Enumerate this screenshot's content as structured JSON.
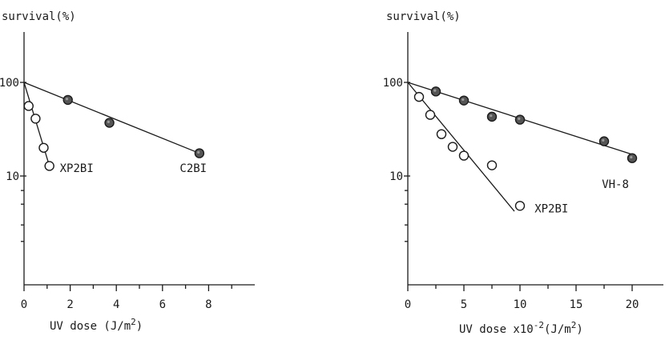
{
  "chart_data": [
    {
      "type": "scatter",
      "title": "",
      "ylabel": "survival(%)",
      "xlabel": "UV dose (J/m",
      "xlabel_superscript": "2",
      "xlabel_close": ")",
      "ylog": true,
      "ylim": [
        1,
        100
      ],
      "xlim": [
        0,
        10
      ],
      "yticks": [
        {
          "value": 100,
          "label": "100"
        },
        {
          "value": 10,
          "label": "10"
        }
      ],
      "xticks": [
        {
          "value": 0,
          "label": "0"
        },
        {
          "value": 2,
          "label": "2"
        },
        {
          "value": 4,
          "label": "4"
        },
        {
          "value": 6,
          "label": "6"
        },
        {
          "value": 8,
          "label": "8"
        }
      ],
      "minor_xticks": [
        1,
        3,
        5,
        7,
        9
      ],
      "series": [
        {
          "name": "C2BI",
          "marker": "filled",
          "points": [
            [
              1.9,
              65
            ],
            [
              3.7,
              37
            ],
            [
              7.6,
              17.5
            ]
          ],
          "fit": [
            [
              0,
              100
            ],
            [
              7.6,
              17.5
            ]
          ],
          "label_at": [
            6.75,
            12.2
          ]
        },
        {
          "name": "XP2BI",
          "marker": "open",
          "points": [
            [
              0.2,
              56
            ],
            [
              0.5,
              41
            ],
            [
              0.85,
              20
            ],
            [
              1.1,
              12.8
            ]
          ],
          "fit": [
            [
              0,
              100
            ],
            [
              1.1,
              12.8
            ]
          ],
          "label_at": [
            1.55,
            12.2
          ]
        }
      ]
    },
    {
      "type": "scatter",
      "title": "",
      "ylabel": "survival(%)",
      "xlabel": "UV dose x10",
      "xlabel_superscript": "-2",
      "xlabel_close": "(J/m",
      "xlabel_superscript2": "2",
      "xlabel_close2": ")",
      "ylog": true,
      "ylim": [
        1,
        100
      ],
      "xlim": [
        0,
        22
      ],
      "yticks": [
        {
          "value": 100,
          "label": "100"
        },
        {
          "value": 10,
          "label": "10"
        }
      ],
      "xticks": [
        {
          "value": 0,
          "label": "0"
        },
        {
          "value": 5,
          "label": "5"
        },
        {
          "value": 10,
          "label": "10"
        },
        {
          "value": 15,
          "label": "15"
        },
        {
          "value": 20,
          "label": "20"
        }
      ],
      "minor_xticks": [
        2.5,
        7.5,
        12.5,
        17.5
      ],
      "series": [
        {
          "name": "VH-8",
          "marker": "filled",
          "points": [
            [
              2.5,
              80
            ],
            [
              5,
              64
            ],
            [
              7.5,
              43
            ],
            [
              10,
              40
            ],
            [
              17.5,
              23.5
            ],
            [
              20,
              15.5
            ]
          ],
          "fit": [
            [
              0,
              100
            ],
            [
              20,
              17
            ]
          ],
          "label_at": [
            17.3,
            8.2
          ]
        },
        {
          "name": "XP2BI",
          "marker": "open",
          "points": [
            [
              1,
              70
            ],
            [
              2,
              45
            ],
            [
              3,
              28
            ],
            [
              4,
              20.5
            ],
            [
              5,
              16.5
            ],
            [
              7.5,
              13
            ],
            [
              10,
              4.8
            ]
          ],
          "fit": [
            [
              0,
              100
            ],
            [
              9.5,
              4.2
            ]
          ],
          "label_at": [
            11.3,
            4.5
          ]
        }
      ]
    }
  ]
}
